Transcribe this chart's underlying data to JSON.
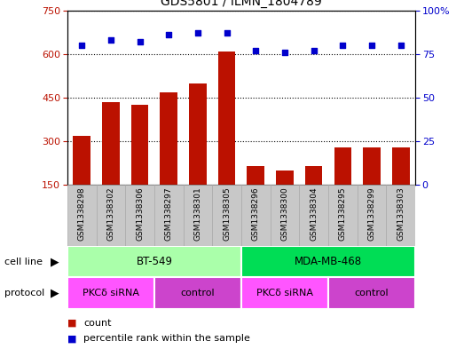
{
  "title": "GDS5801 / ILMN_1804789",
  "samples": [
    "GSM1338298",
    "GSM1338302",
    "GSM1338306",
    "GSM1338297",
    "GSM1338301",
    "GSM1338305",
    "GSM1338296",
    "GSM1338300",
    "GSM1338304",
    "GSM1338295",
    "GSM1338299",
    "GSM1338303"
  ],
  "counts": [
    320,
    435,
    425,
    468,
    500,
    610,
    215,
    200,
    215,
    280,
    278,
    278
  ],
  "percentiles": [
    80,
    83,
    82,
    86,
    87,
    87,
    77,
    76,
    77,
    80,
    80,
    80
  ],
  "bar_color": "#bb1100",
  "dot_color": "#0000cc",
  "ylim_left": [
    150,
    750
  ],
  "ylim_right": [
    0,
    100
  ],
  "yticks_left": [
    150,
    300,
    450,
    600,
    750
  ],
  "yticks_right": [
    0,
    25,
    50,
    75,
    100
  ],
  "cell_line_groups": [
    {
      "label": "BT-549",
      "start": 0,
      "end": 6,
      "color": "#aaffaa"
    },
    {
      "label": "MDA-MB-468",
      "start": 6,
      "end": 12,
      "color": "#00dd55"
    }
  ],
  "protocol_groups": [
    {
      "label": "PKCδ siRNA",
      "start": 0,
      "end": 3,
      "color": "#ff55ff"
    },
    {
      "label": "control",
      "start": 3,
      "end": 6,
      "color": "#cc44cc"
    },
    {
      "label": "PKCδ siRNA",
      "start": 6,
      "end": 9,
      "color": "#ff55ff"
    },
    {
      "label": "control",
      "start": 9,
      "end": 12,
      "color": "#cc44cc"
    }
  ],
  "cell_line_label": "cell line",
  "protocol_label": "protocol",
  "legend_count": "count",
  "legend_percentile": "percentile rank within the sample",
  "background_color": "#ffffff",
  "sample_bg_color": "#c8c8c8",
  "sample_border_color": "#aaaaaa"
}
